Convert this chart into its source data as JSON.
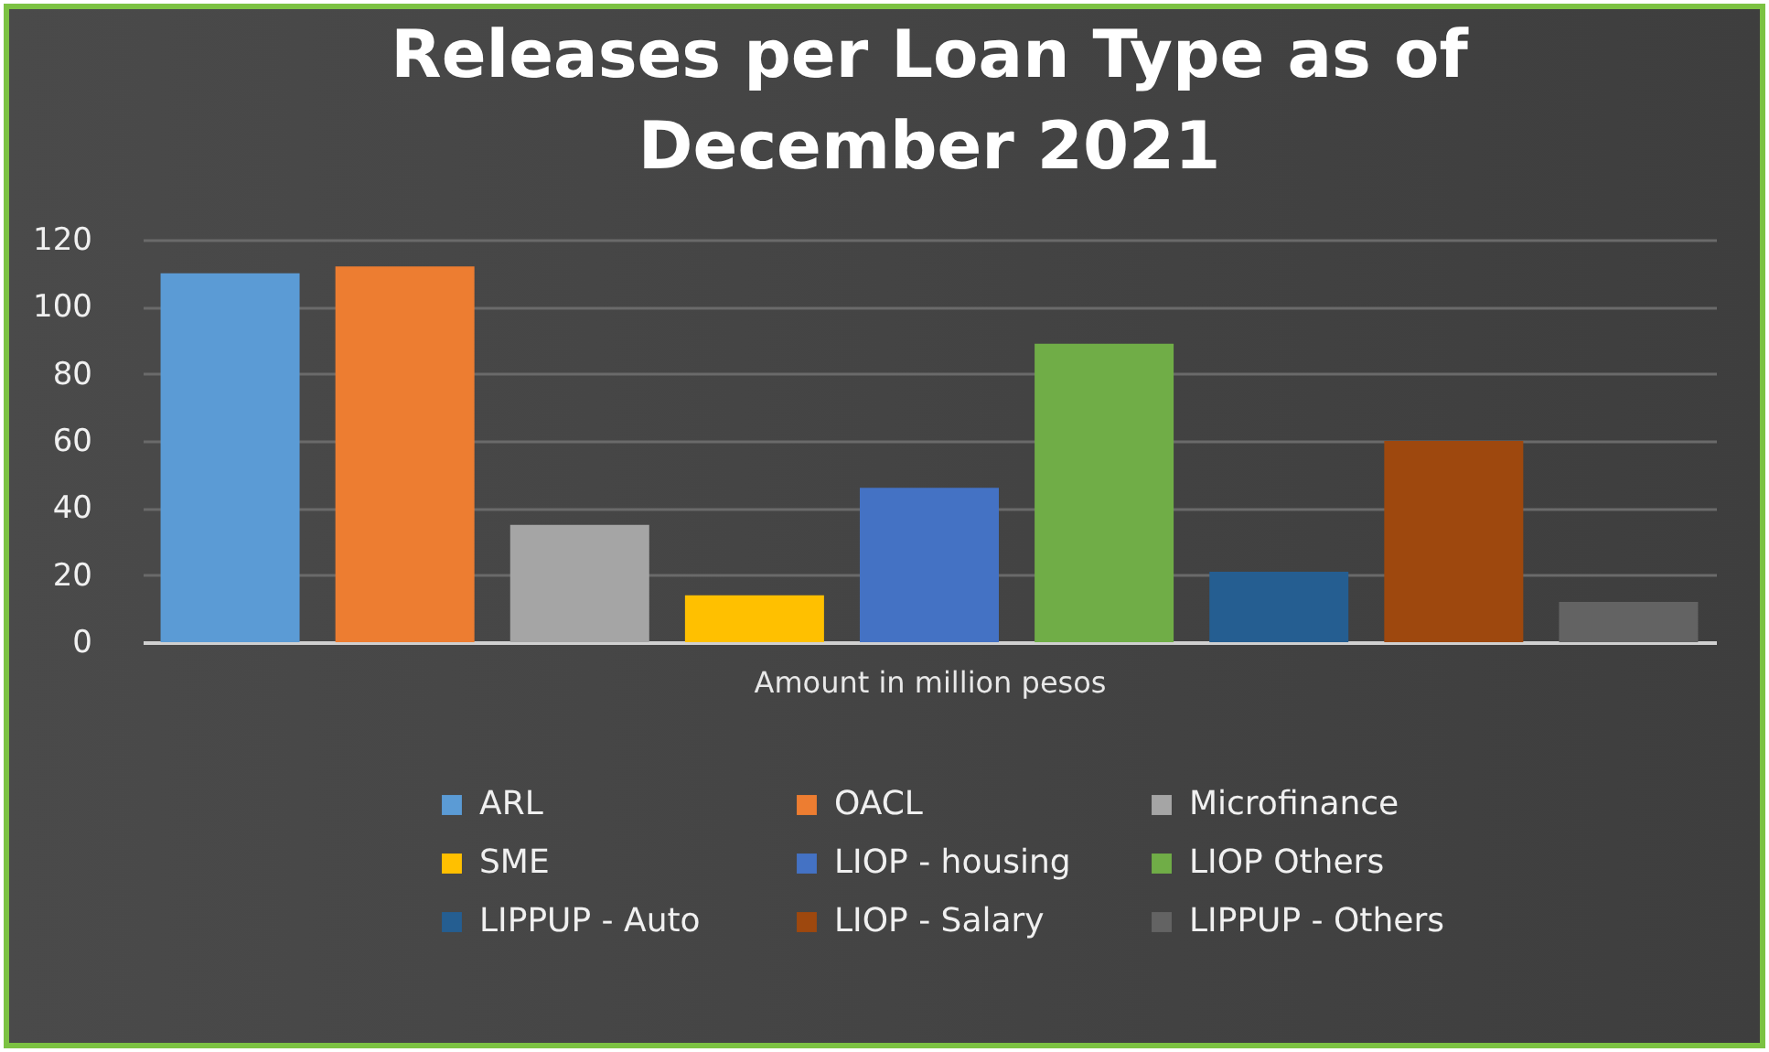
{
  "chart_data": {
    "type": "bar",
    "title": "Releases per Loan Type as of December 2021",
    "xlabel": "Amount in  million pesos",
    "categories": [
      null,
      null,
      null,
      null,
      null,
      null,
      null,
      null,
      null
    ],
    "series": [
      {
        "name": "ARL",
        "color": "#5b9bd5",
        "values": [
          110,
          null,
          null,
          null,
          null,
          null,
          null,
          null,
          null
        ]
      },
      {
        "name": "OACL",
        "color": "#ed7d31",
        "values": [
          null,
          112,
          null,
          null,
          null,
          null,
          null,
          null,
          null
        ]
      },
      {
        "name": "Microfinance",
        "color": "#a5a5a5",
        "values": [
          null,
          null,
          35,
          null,
          null,
          null,
          null,
          null,
          null
        ]
      },
      {
        "name": "SME",
        "color": "#ffc000",
        "values": [
          null,
          null,
          null,
          14,
          null,
          null,
          null,
          null,
          null
        ]
      },
      {
        "name": "LIOP - housing",
        "color": "#4472c4",
        "values": [
          null,
          null,
          null,
          null,
          46,
          null,
          null,
          null,
          null
        ]
      },
      {
        "name": "LIOP Others",
        "color": "#70ad47",
        "values": [
          null,
          null,
          null,
          null,
          null,
          89,
          null,
          null,
          null
        ]
      },
      {
        "name": "LIPPUP - Auto",
        "color": "#255e91",
        "values": [
          null,
          null,
          null,
          null,
          null,
          null,
          21,
          null,
          null
        ]
      },
      {
        "name": "LIOP - Salary",
        "color": "#9e480e",
        "values": [
          null,
          null,
          null,
          null,
          null,
          null,
          null,
          60,
          null
        ]
      },
      {
        "name": "LIPPUP - Others",
        "color": "#636363",
        "values": [
          null,
          null,
          null,
          null,
          null,
          null,
          null,
          null,
          12
        ]
      }
    ],
    "ylim": [
      0,
      120
    ],
    "yticks": [
      0,
      20,
      40,
      60,
      80,
      100,
      120
    ],
    "grid": "y",
    "legend": "bottom",
    "tick_labels": "y"
  }
}
